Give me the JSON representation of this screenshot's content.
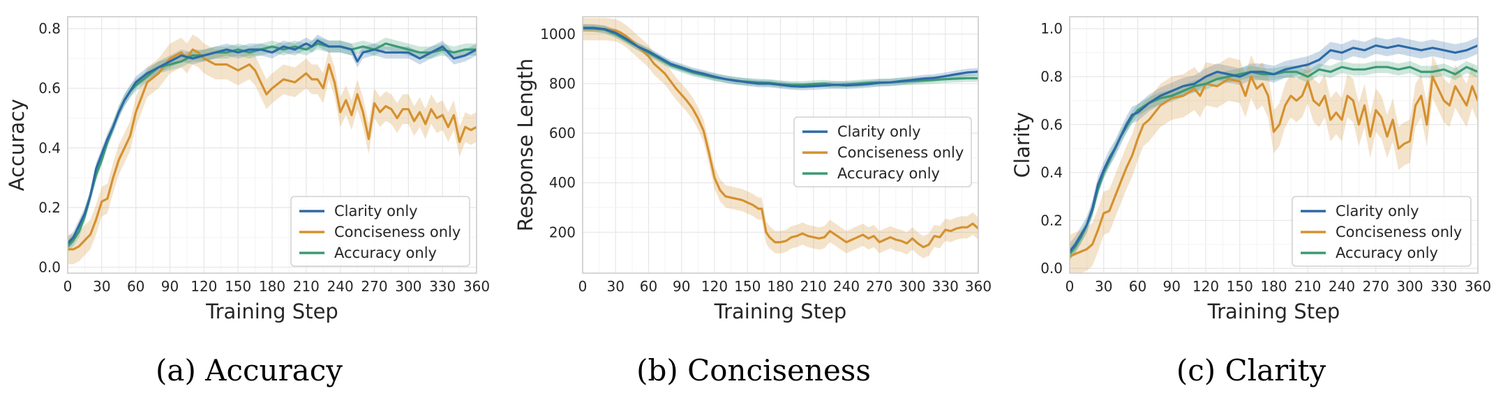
{
  "chart_data": [
    {
      "type": "line",
      "title": "",
      "xlabel": "Training Step",
      "ylabel": "Accuracy",
      "caption": "(a) Accuracy",
      "xlim": [
        0,
        360
      ],
      "ylim": [
        -0.02,
        0.84
      ],
      "xticks": [
        0,
        30,
        60,
        90,
        120,
        150,
        180,
        210,
        240,
        270,
        300,
        330,
        360
      ],
      "yticks": [
        0.0,
        0.2,
        0.4,
        0.6,
        0.8
      ],
      "ytick_labels": [
        "0.0",
        "0.2",
        "0.4",
        "0.6",
        "0.8"
      ],
      "grid": true,
      "legend": "lower-right",
      "series": [
        {
          "name": "Clarity only",
          "color": "#2d6aa6",
          "band": 0.02,
          "x": [
            0,
            5,
            10,
            15,
            20,
            25,
            30,
            35,
            40,
            45,
            50,
            55,
            60,
            70,
            80,
            90,
            100,
            110,
            120,
            130,
            140,
            150,
            160,
            170,
            180,
            190,
            200,
            210,
            215,
            220,
            225,
            230,
            240,
            250,
            255,
            260,
            270,
            280,
            290,
            300,
            310,
            320,
            330,
            340,
            350,
            360
          ],
          "y": [
            0.08,
            0.1,
            0.14,
            0.18,
            0.24,
            0.33,
            0.38,
            0.43,
            0.47,
            0.52,
            0.56,
            0.59,
            0.62,
            0.65,
            0.67,
            0.69,
            0.71,
            0.7,
            0.71,
            0.72,
            0.73,
            0.72,
            0.73,
            0.73,
            0.72,
            0.74,
            0.73,
            0.75,
            0.74,
            0.76,
            0.75,
            0.74,
            0.74,
            0.73,
            0.69,
            0.72,
            0.73,
            0.72,
            0.72,
            0.72,
            0.7,
            0.72,
            0.74,
            0.7,
            0.71,
            0.73
          ]
        },
        {
          "name": "Conciseness only",
          "color": "#d4912f",
          "band": 0.05,
          "x": [
            0,
            5,
            10,
            15,
            20,
            25,
            30,
            35,
            40,
            45,
            50,
            55,
            60,
            70,
            80,
            90,
            100,
            105,
            110,
            115,
            120,
            130,
            140,
            150,
            160,
            165,
            170,
            175,
            180,
            190,
            200,
            210,
            215,
            220,
            225,
            230,
            235,
            240,
            245,
            250,
            255,
            260,
            265,
            270,
            275,
            280,
            285,
            290,
            295,
            300,
            305,
            310,
            315,
            320,
            325,
            330,
            335,
            340,
            345,
            350,
            355,
            360
          ],
          "y": [
            0.06,
            0.06,
            0.07,
            0.09,
            0.11,
            0.16,
            0.22,
            0.23,
            0.3,
            0.36,
            0.4,
            0.44,
            0.52,
            0.62,
            0.65,
            0.7,
            0.72,
            0.7,
            0.73,
            0.72,
            0.7,
            0.68,
            0.68,
            0.66,
            0.68,
            0.66,
            0.62,
            0.58,
            0.6,
            0.63,
            0.62,
            0.65,
            0.63,
            0.63,
            0.6,
            0.68,
            0.62,
            0.52,
            0.56,
            0.51,
            0.58,
            0.52,
            0.43,
            0.55,
            0.52,
            0.54,
            0.53,
            0.5,
            0.53,
            0.53,
            0.49,
            0.52,
            0.48,
            0.53,
            0.5,
            0.51,
            0.47,
            0.51,
            0.42,
            0.47,
            0.46,
            0.47
          ]
        },
        {
          "name": "Accuracy only",
          "color": "#3c9a74",
          "band": 0.02,
          "x": [
            0,
            5,
            10,
            15,
            20,
            25,
            30,
            35,
            40,
            45,
            50,
            55,
            60,
            70,
            80,
            90,
            100,
            110,
            120,
            130,
            140,
            150,
            160,
            170,
            180,
            190,
            200,
            210,
            220,
            230,
            240,
            250,
            260,
            270,
            280,
            290,
            300,
            310,
            320,
            330,
            340,
            350,
            360
          ],
          "y": [
            0.07,
            0.09,
            0.12,
            0.17,
            0.24,
            0.31,
            0.36,
            0.42,
            0.47,
            0.52,
            0.56,
            0.59,
            0.61,
            0.64,
            0.67,
            0.68,
            0.69,
            0.71,
            0.71,
            0.72,
            0.72,
            0.73,
            0.72,
            0.73,
            0.74,
            0.73,
            0.74,
            0.73,
            0.75,
            0.74,
            0.74,
            0.73,
            0.74,
            0.73,
            0.75,
            0.74,
            0.73,
            0.72,
            0.72,
            0.73,
            0.72,
            0.73,
            0.73
          ]
        }
      ]
    },
    {
      "type": "line",
      "title": "",
      "xlabel": "Training Step",
      "ylabel": "Response Length",
      "caption": "(b) Conciseness",
      "xlim": [
        0,
        360
      ],
      "ylim": [
        35,
        1070
      ],
      "xticks": [
        0,
        30,
        60,
        90,
        120,
        150,
        180,
        210,
        240,
        270,
        300,
        330,
        360
      ],
      "yticks": [
        200,
        400,
        600,
        800,
        1000
      ],
      "ytick_labels": [
        "200",
        "400",
        "600",
        "800",
        "1000"
      ],
      "grid": true,
      "legend": "center-right",
      "series": [
        {
          "name": "Clarity only",
          "color": "#2d6aa6",
          "band": 15,
          "x": [
            0,
            10,
            20,
            30,
            40,
            50,
            60,
            70,
            80,
            90,
            100,
            110,
            120,
            130,
            140,
            150,
            160,
            170,
            180,
            190,
            200,
            210,
            220,
            230,
            240,
            250,
            260,
            270,
            280,
            290,
            300,
            310,
            320,
            330,
            340,
            350,
            360
          ],
          "y": [
            1025,
            1025,
            1020,
            1005,
            980,
            950,
            930,
            905,
            880,
            865,
            850,
            840,
            828,
            818,
            812,
            805,
            800,
            800,
            795,
            790,
            788,
            790,
            792,
            795,
            793,
            795,
            798,
            803,
            805,
            810,
            815,
            820,
            823,
            830,
            838,
            845,
            848
          ]
        },
        {
          "name": "Conciseness only",
          "color": "#d4912f",
          "band": 45,
          "x": [
            0,
            10,
            20,
            30,
            35,
            40,
            45,
            50,
            55,
            60,
            65,
            70,
            75,
            80,
            85,
            90,
            95,
            100,
            105,
            110,
            115,
            120,
            125,
            130,
            140,
            145,
            150,
            155,
            160,
            163,
            167,
            170,
            175,
            180,
            185,
            190,
            195,
            200,
            205,
            210,
            215,
            220,
            225,
            230,
            235,
            240,
            245,
            250,
            255,
            260,
            265,
            270,
            275,
            280,
            285,
            290,
            295,
            300,
            305,
            310,
            315,
            320,
            325,
            330,
            335,
            340,
            345,
            350,
            355,
            360
          ],
          "y": [
            1020,
            1020,
            1020,
            1015,
            1005,
            990,
            970,
            950,
            930,
            910,
            880,
            860,
            840,
            810,
            780,
            755,
            730,
            700,
            660,
            610,
            520,
            420,
            370,
            345,
            335,
            330,
            320,
            310,
            295,
            295,
            200,
            180,
            160,
            160,
            165,
            180,
            185,
            195,
            185,
            180,
            175,
            180,
            205,
            190,
            175,
            160,
            170,
            180,
            190,
            175,
            185,
            160,
            170,
            180,
            170,
            165,
            155,
            175,
            155,
            140,
            150,
            185,
            180,
            210,
            205,
            215,
            220,
            220,
            235,
            215
          ]
        },
        {
          "name": "Accuracy only",
          "color": "#3c9a74",
          "band": 15,
          "x": [
            0,
            10,
            20,
            30,
            40,
            50,
            60,
            70,
            80,
            90,
            100,
            110,
            120,
            130,
            140,
            150,
            160,
            170,
            180,
            190,
            200,
            210,
            220,
            230,
            240,
            250,
            260,
            270,
            280,
            290,
            300,
            310,
            320,
            330,
            340,
            350,
            360
          ],
          "y": [
            1025,
            1023,
            1018,
            1000,
            975,
            950,
            925,
            900,
            875,
            860,
            845,
            835,
            825,
            818,
            810,
            808,
            805,
            803,
            798,
            795,
            795,
            798,
            800,
            795,
            797,
            800,
            803,
            805,
            805,
            808,
            810,
            812,
            815,
            818,
            820,
            822,
            822
          ]
        }
      ]
    },
    {
      "type": "line",
      "title": "",
      "xlabel": "Training Step",
      "ylabel": "Clarity",
      "caption": "(c) Clarity",
      "xlim": [
        0,
        360
      ],
      "ylim": [
        -0.02,
        1.05
      ],
      "xticks": [
        0,
        30,
        60,
        90,
        120,
        150,
        180,
        210,
        240,
        270,
        300,
        330,
        360
      ],
      "yticks": [
        0.0,
        0.2,
        0.4,
        0.6,
        0.8,
        1.0
      ],
      "ytick_labels": [
        "0.0",
        "0.2",
        "0.4",
        "0.6",
        "0.8",
        "1.0"
      ],
      "grid": true,
      "legend": "lower-right",
      "series": [
        {
          "name": "Clarity only",
          "color": "#2d6aa6",
          "band": 0.035,
          "x": [
            0,
            5,
            10,
            15,
            20,
            25,
            30,
            35,
            40,
            45,
            50,
            55,
            60,
            70,
            80,
            90,
            100,
            110,
            120,
            130,
            140,
            150,
            160,
            170,
            180,
            190,
            200,
            210,
            220,
            230,
            240,
            250,
            260,
            270,
            280,
            290,
            300,
            310,
            320,
            330,
            340,
            350,
            355,
            360
          ],
          "y": [
            0.07,
            0.1,
            0.14,
            0.18,
            0.25,
            0.35,
            0.41,
            0.46,
            0.5,
            0.55,
            0.6,
            0.64,
            0.65,
            0.69,
            0.72,
            0.74,
            0.76,
            0.77,
            0.8,
            0.82,
            0.81,
            0.8,
            0.82,
            0.82,
            0.81,
            0.83,
            0.84,
            0.85,
            0.87,
            0.91,
            0.9,
            0.92,
            0.91,
            0.93,
            0.92,
            0.93,
            0.92,
            0.91,
            0.92,
            0.91,
            0.9,
            0.91,
            0.92,
            0.93
          ]
        },
        {
          "name": "Conciseness only",
          "color": "#d4912f",
          "band": 0.09,
          "x": [
            0,
            5,
            10,
            15,
            20,
            25,
            30,
            35,
            40,
            45,
            50,
            55,
            60,
            65,
            70,
            80,
            90,
            100,
            110,
            115,
            120,
            130,
            140,
            150,
            155,
            160,
            165,
            170,
            175,
            180,
            185,
            190,
            195,
            200,
            205,
            210,
            215,
            220,
            225,
            230,
            235,
            240,
            245,
            250,
            255,
            260,
            265,
            270,
            275,
            280,
            285,
            290,
            295,
            300,
            305,
            310,
            315,
            320,
            325,
            330,
            335,
            340,
            345,
            350,
            355,
            360
          ],
          "y": [
            0.05,
            0.06,
            0.07,
            0.08,
            0.1,
            0.16,
            0.23,
            0.24,
            0.3,
            0.36,
            0.42,
            0.47,
            0.54,
            0.6,
            0.62,
            0.68,
            0.71,
            0.72,
            0.75,
            0.72,
            0.77,
            0.76,
            0.79,
            0.78,
            0.72,
            0.8,
            0.75,
            0.77,
            0.72,
            0.57,
            0.6,
            0.68,
            0.72,
            0.7,
            0.72,
            0.78,
            0.7,
            0.68,
            0.72,
            0.62,
            0.65,
            0.62,
            0.72,
            0.7,
            0.6,
            0.68,
            0.55,
            0.66,
            0.63,
            0.55,
            0.62,
            0.5,
            0.52,
            0.53,
            0.68,
            0.72,
            0.6,
            0.8,
            0.75,
            0.7,
            0.68,
            0.76,
            0.72,
            0.68,
            0.76,
            0.7
          ]
        },
        {
          "name": "Accuracy only",
          "color": "#3c9a74",
          "band": 0.025,
          "x": [
            0,
            5,
            10,
            15,
            20,
            25,
            30,
            35,
            40,
            45,
            50,
            55,
            60,
            70,
            80,
            90,
            100,
            110,
            120,
            130,
            140,
            150,
            160,
            170,
            180,
            190,
            200,
            210,
            220,
            230,
            240,
            250,
            260,
            270,
            280,
            290,
            300,
            310,
            320,
            330,
            340,
            350,
            360
          ],
          "y": [
            0.06,
            0.09,
            0.13,
            0.18,
            0.24,
            0.33,
            0.4,
            0.45,
            0.5,
            0.55,
            0.59,
            0.63,
            0.66,
            0.69,
            0.71,
            0.72,
            0.74,
            0.76,
            0.77,
            0.79,
            0.8,
            0.81,
            0.82,
            0.81,
            0.81,
            0.82,
            0.82,
            0.8,
            0.83,
            0.82,
            0.84,
            0.83,
            0.83,
            0.84,
            0.84,
            0.83,
            0.84,
            0.82,
            0.82,
            0.83,
            0.81,
            0.84,
            0.82
          ]
        }
      ]
    }
  ]
}
